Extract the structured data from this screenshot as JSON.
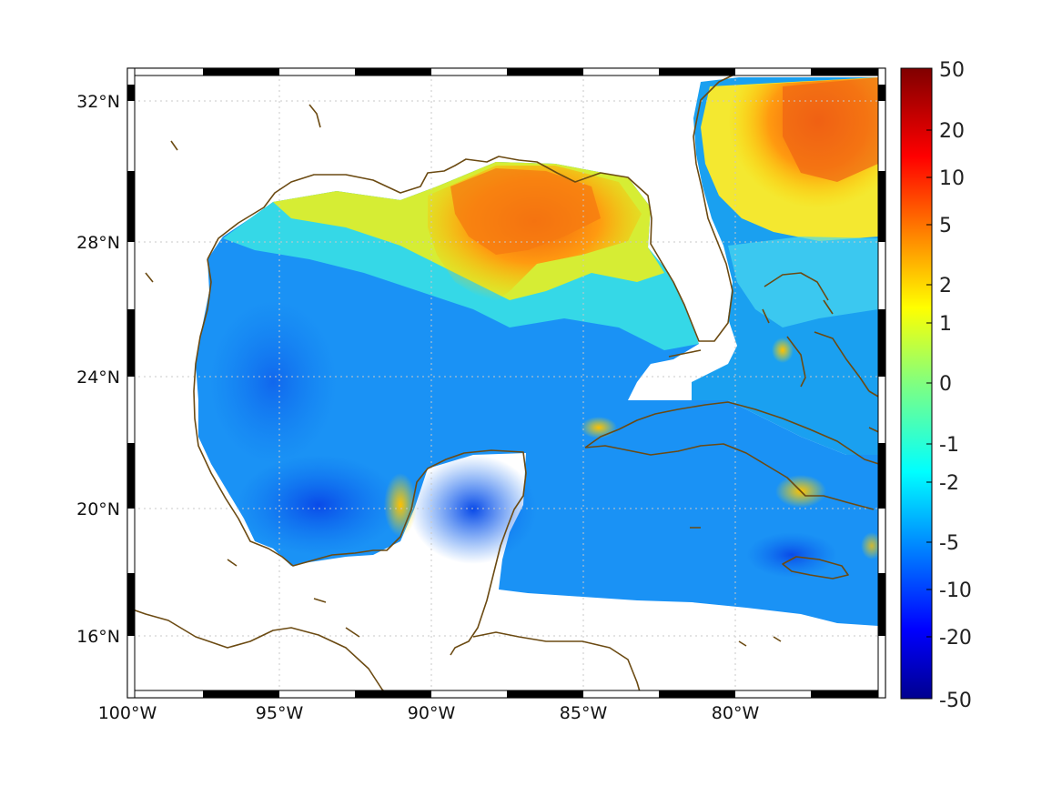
{
  "map": {
    "lon_labels": [
      "100°W",
      "95°W",
      "90°W",
      "85°W",
      "80°W"
    ],
    "lat_labels": [
      "32°N",
      "28°N",
      "24°N",
      "20°N",
      "16°N"
    ],
    "lon_values": [
      -100,
      -95,
      -90,
      -85,
      -80
    ],
    "lat_values": [
      32,
      28,
      24,
      20,
      16
    ],
    "lon_range": [
      -100,
      -75
    ],
    "lat_range": [
      14.5,
      33
    ],
    "grid": "dotted",
    "coastline_color": "#6b4a12"
  },
  "colorbar": {
    "labels": [
      "50",
      "20",
      "10",
      "5",
      "2",
      "1",
      "0",
      "-1",
      "-2",
      "-5",
      "-10",
      "-20",
      "-50"
    ],
    "colormap": "jet",
    "position": "right"
  }
}
